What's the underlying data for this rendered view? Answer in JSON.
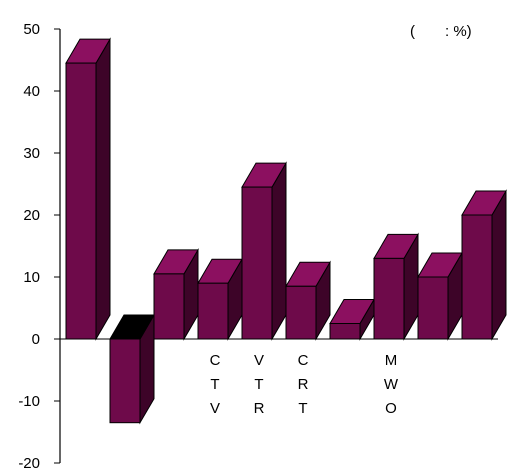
{
  "chart_data": {
    "type": "bar",
    "categories": [
      "",
      "",
      "",
      "CTV",
      "VTR",
      "CRT",
      "",
      "MWO",
      "",
      ""
    ],
    "values": [
      44.5,
      -13.5,
      10.5,
      9.0,
      24.5,
      8.5,
      2.5,
      13.0,
      10.0,
      20.0
    ],
    "bar_colors": [
      "#6e0a4a",
      "#6e0a4a",
      "#6e0a4a",
      "#6e0a4a",
      "#6e0a4a",
      "#6e0a4a",
      "#6e0a4a",
      "#6e0a4a",
      "#6e0a4a",
      "#6e0a4a"
    ],
    "bar_top_colors": [
      "#8c1060",
      "#000000",
      "#8c1060",
      "#8c1060",
      "#8c1060",
      "#8c1060",
      "#8c1060",
      "#8c1060",
      "#8c1060",
      "#8c1060"
    ],
    "bar_side_color": "#3d0428",
    "ylim": [
      -20,
      50
    ],
    "yticks": [
      -20,
      -10,
      0,
      10,
      20,
      30,
      40,
      50
    ],
    "unit_label": "(　　: %)",
    "grid": false,
    "style": "3d-bar"
  }
}
